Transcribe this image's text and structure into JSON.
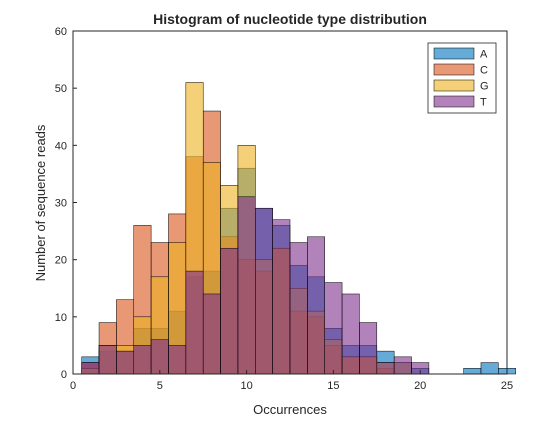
{
  "chart_data": {
    "type": "histogram",
    "title": "Histogram of nucleotide type distribution",
    "xlabel": "Occurrences",
    "ylabel": "Number of sequence reads",
    "xlim": [
      0,
      25
    ],
    "ylim": [
      0,
      60
    ],
    "xticks": [
      0,
      5,
      10,
      15,
      20,
      25
    ],
    "yticks": [
      0,
      10,
      20,
      30,
      40,
      50,
      60
    ],
    "bin_width": 1,
    "bin_start": 0.5,
    "legend_position": "top-right",
    "grid": false,
    "overlay_alpha": 0.6,
    "series": [
      {
        "name": "A",
        "color": "#0072BD",
        "values": [
          3,
          4,
          4,
          8,
          8,
          11,
          17,
          18,
          29,
          36,
          29,
          26,
          19,
          17,
          8,
          5,
          5,
          4,
          2,
          1,
          0,
          0,
          1,
          2,
          1
        ]
      },
      {
        "name": "C",
        "color": "#D95319",
        "values": [
          2,
          9,
          13,
          26,
          23,
          28,
          38,
          46,
          24,
          20,
          18,
          22,
          11,
          10,
          5,
          3,
          3,
          1,
          0,
          0,
          0,
          0,
          0,
          0,
          0
        ]
      },
      {
        "name": "G",
        "color": "#EDB120",
        "values": [
          1,
          5,
          5,
          10,
          17,
          23,
          51,
          37,
          33,
          40,
          20,
          22,
          15,
          11,
          6,
          3,
          3,
          2,
          2,
          0,
          0,
          0,
          0,
          0,
          0
        ]
      },
      {
        "name": "T",
        "color": "#7E2F8E",
        "values": [
          2,
          5,
          4,
          5,
          6,
          5,
          18,
          14,
          22,
          31,
          29,
          27,
          23,
          24,
          16,
          14,
          9,
          2,
          3,
          2,
          0,
          0,
          0,
          0,
          0
        ]
      }
    ]
  }
}
